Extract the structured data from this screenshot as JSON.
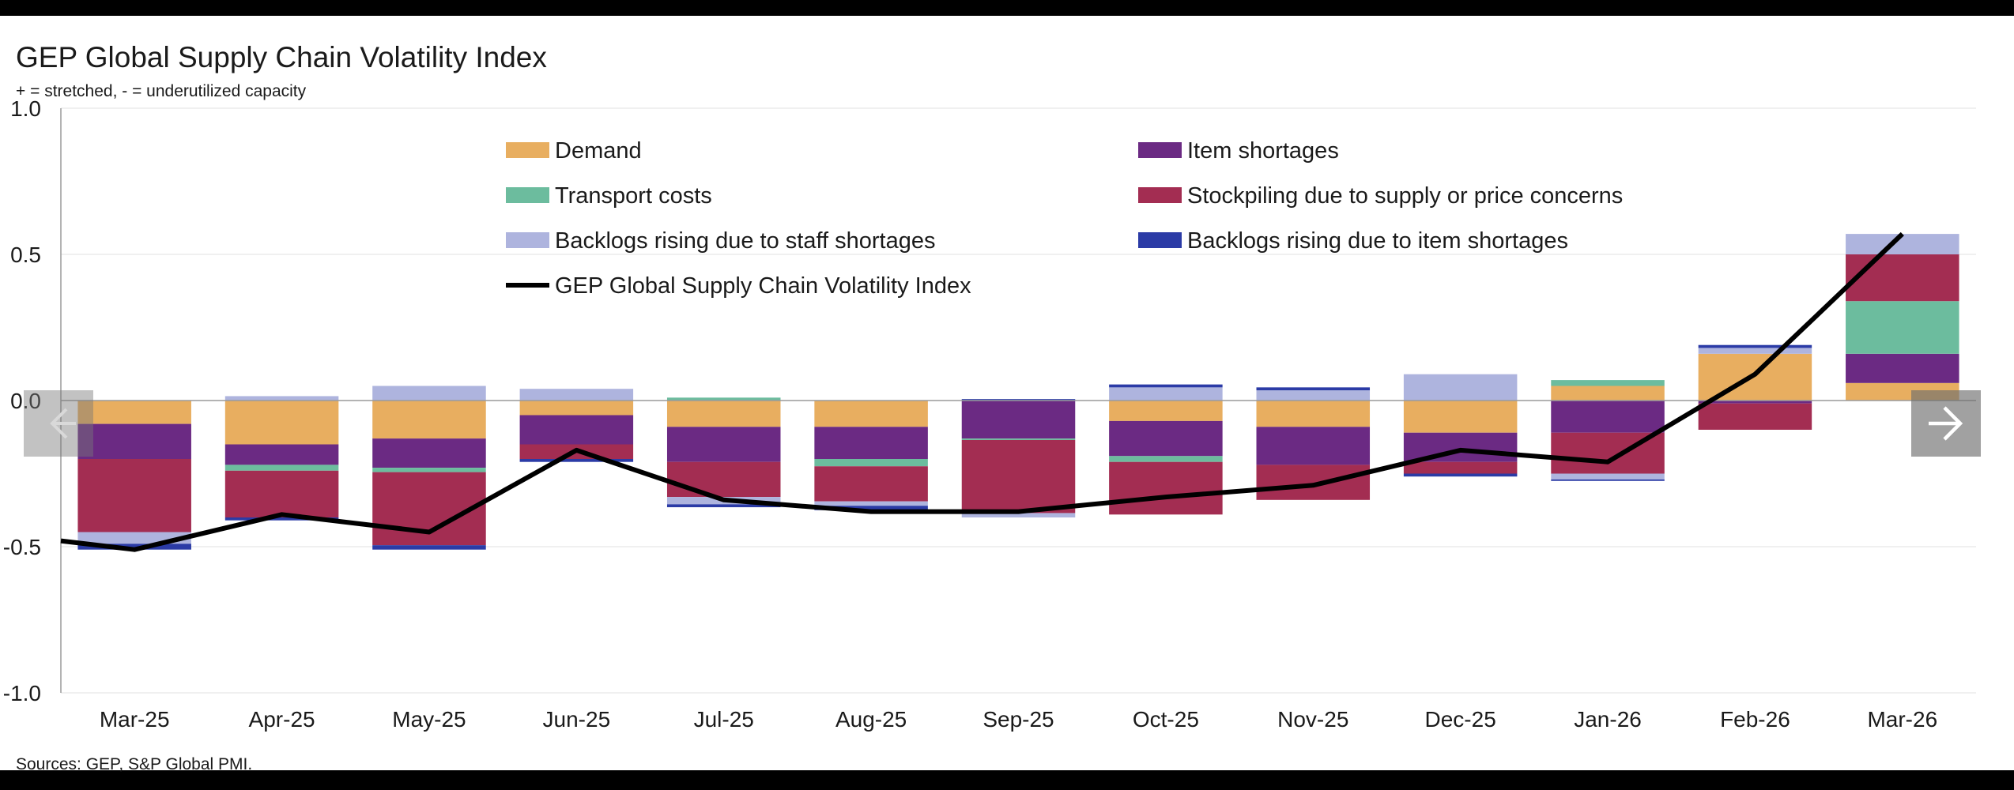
{
  "title": "GEP Global Supply Chain Volatility Index",
  "subtitle": "+ = stretched, - = underutilized capacity",
  "source": "Sources: GEP, S&P Global PMI.",
  "nav": {
    "prev_icon": "arrow-left-icon",
    "next_icon": "arrow-right-icon"
  },
  "chart_data": {
    "type": "bar",
    "stacked": true,
    "categories": [
      "Mar-25",
      "Apr-25",
      "May-25",
      "Jun-25",
      "Jul-25",
      "Aug-25",
      "Sep-25",
      "Oct-25",
      "Nov-25",
      "Dec-25",
      "Jan-26",
      "Feb-26",
      "Mar-26"
    ],
    "ylim": [
      -1.0,
      1.0
    ],
    "yticks": [
      1.0,
      0.5,
      0.0,
      -0.5,
      -1.0
    ],
    "ytick_labels": [
      "1.0",
      "0.5",
      "0.0",
      "-0.5",
      "-1.0"
    ],
    "grid": true,
    "legend_position": "top-center",
    "series": [
      {
        "name": "Demand",
        "color": "#E8AE60",
        "values": [
          -0.08,
          -0.15,
          -0.13,
          -0.05,
          -0.09,
          -0.09,
          0.0,
          -0.07,
          -0.09,
          -0.11,
          0.05,
          0.16,
          0.06
        ]
      },
      {
        "name": "Item shortages",
        "color": "#6B2A83",
        "values": [
          -0.12,
          -0.07,
          -0.1,
          -0.1,
          -0.12,
          -0.11,
          -0.13,
          -0.12,
          -0.13,
          -0.1,
          -0.11,
          -0.01,
          0.1
        ]
      },
      {
        "name": "Transport costs",
        "color": "#6CBC9E",
        "values": [
          0.0,
          -0.02,
          -0.015,
          0.0,
          0.01,
          -0.025,
          -0.005,
          -0.02,
          0.0,
          0.0,
          0.02,
          0.0,
          0.18
        ]
      },
      {
        "name": "Stockpiling due to supply or price concerns",
        "color": "#A32D52",
        "values": [
          -0.25,
          -0.16,
          -0.25,
          -0.05,
          -0.12,
          -0.12,
          -0.25,
          -0.18,
          -0.12,
          -0.04,
          -0.14,
          -0.09,
          0.16
        ]
      },
      {
        "name": "Backlogs rising due to staff shortages",
        "color": "#AEB4DE",
        "values": [
          -0.04,
          0.015,
          0.05,
          0.04,
          -0.025,
          -0.015,
          -0.015,
          0.045,
          0.035,
          0.09,
          -0.02,
          0.02,
          0.07
        ]
      },
      {
        "name": "Backlogs rising due to item shortages",
        "color": "#2B3BA6",
        "values": [
          -0.02,
          -0.01,
          -0.015,
          -0.01,
          -0.01,
          -0.015,
          0.005,
          0.01,
          0.01,
          -0.01,
          -0.005,
          0.01,
          0.0
        ]
      }
    ],
    "line": {
      "name": "GEP Global Supply Chain Volatility Index",
      "color": "#000000",
      "values": [
        -0.51,
        -0.39,
        -0.45,
        -0.17,
        -0.34,
        -0.38,
        -0.38,
        -0.33,
        -0.29,
        -0.17,
        -0.21,
        0.09,
        0.57
      ],
      "left_start": -0.48
    }
  }
}
